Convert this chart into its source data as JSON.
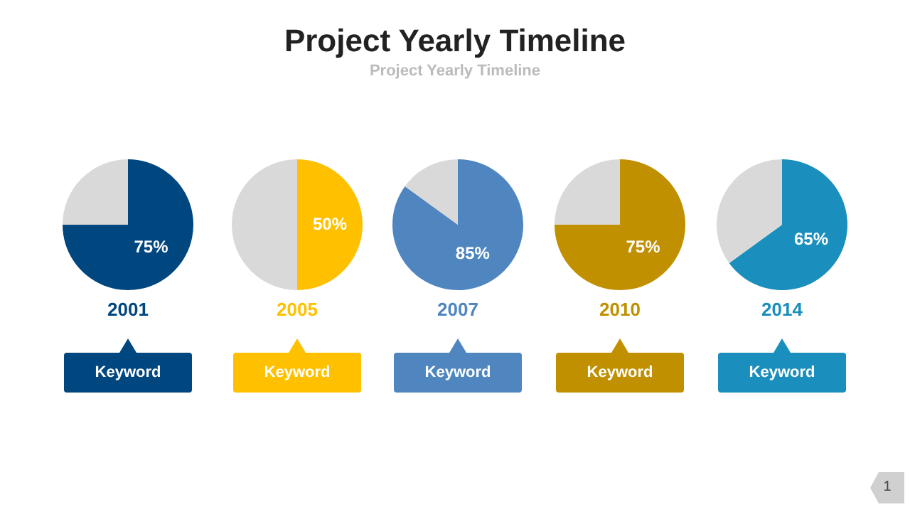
{
  "chart_data": [
    {
      "type": "other",
      "title": "Project Yearly Timeline",
      "subtitle": "Project Yearly Timeline",
      "annotations": [
        "1"
      ]
    },
    {
      "type": "pie",
      "title": "2001",
      "categories": [
        null,
        null
      ],
      "values": [
        75,
        25
      ],
      "colors": [
        "#00467f",
        "#d9d9d9"
      ],
      "value_labels": [
        "75%",
        null
      ],
      "annotations": [
        "Keyword"
      ]
    },
    {
      "type": "pie",
      "title": "2005",
      "categories": [
        null,
        null
      ],
      "values": [
        50,
        50
      ],
      "colors": [
        "#ffc000",
        "#d9d9d9"
      ],
      "value_labels": [
        "50%",
        null
      ],
      "annotations": [
        "Keyword"
      ]
    },
    {
      "type": "pie",
      "title": "2007",
      "categories": [
        null,
        null
      ],
      "values": [
        85,
        15
      ],
      "colors": [
        "#4f86c0",
        "#d9d9d9"
      ],
      "value_labels": [
        "85%",
        null
      ],
      "annotations": [
        "Keyword"
      ]
    },
    {
      "type": "pie",
      "title": "2010",
      "categories": [
        null,
        null
      ],
      "values": [
        75,
        25
      ],
      "colors": [
        "#c09000",
        "#d9d9d9"
      ],
      "value_labels": [
        "75%",
        null
      ],
      "annotations": [
        "Keyword"
      ]
    },
    {
      "type": "pie",
      "title": "2014",
      "categories": [
        null,
        null
      ],
      "values": [
        65,
        35
      ],
      "colors": [
        "#1a8fbd",
        "#d9d9d9"
      ],
      "value_labels": [
        "65%",
        null
      ],
      "annotations": [
        "Keyword"
      ]
    }
  ]
}
